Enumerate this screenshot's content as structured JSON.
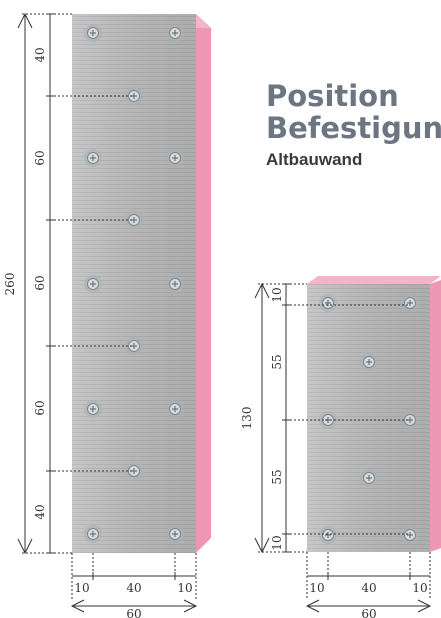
{
  "title": {
    "line1": "Position",
    "line2": "Befestigun",
    "subtitle": "Altbauwand"
  },
  "colors": {
    "board": "#bcbcbc",
    "insulation": "#ef9ab6",
    "dim": "#333333",
    "screw": "#9aa3a8"
  },
  "panel_large": {
    "height_total": "260",
    "vertical_segments": [
      "40",
      "60",
      "60",
      "60",
      "40"
    ],
    "width_segments": [
      "10",
      "40",
      "10"
    ],
    "width_total": "60"
  },
  "panel_small": {
    "height_total": "130",
    "vertical_segments": [
      "10",
      "55",
      "55",
      "10"
    ],
    "width_segments": [
      "10",
      "40",
      "10"
    ],
    "width_total": "60"
  }
}
